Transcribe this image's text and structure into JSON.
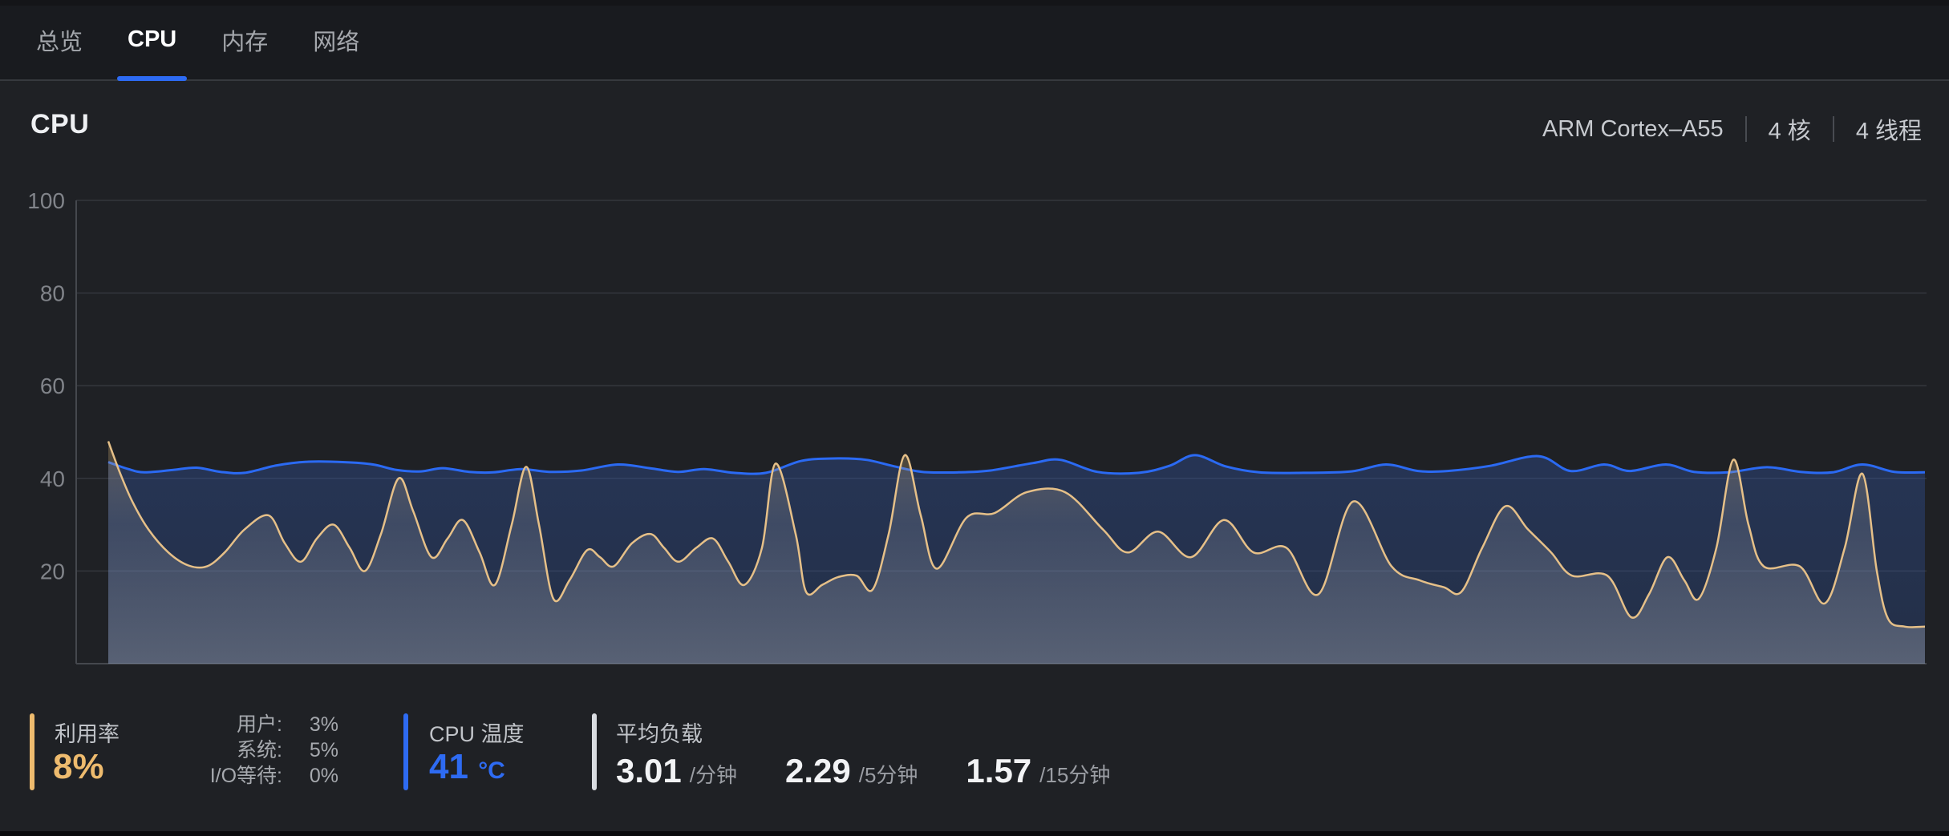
{
  "tab_bar": {
    "tabs": [
      {
        "label": "总览",
        "active": false
      },
      {
        "label": "CPU",
        "active": true
      },
      {
        "label": "内存",
        "active": false
      },
      {
        "label": "网络",
        "active": false
      }
    ]
  },
  "header": {
    "title": "CPU",
    "specs": [
      "ARM Cortex–A55",
      "4 核",
      "4 线程"
    ]
  },
  "chart_data": {
    "type": "line",
    "title": "",
    "xlabel": "",
    "ylabel": "",
    "ylim": [
      0,
      100
    ],
    "yticks": [
      100,
      80,
      60,
      40,
      20
    ],
    "grid": true,
    "legend_position": "none",
    "x_mode": "pixel",
    "series": [
      {
        "name": "blue-line",
        "color": "#2b6af3",
        "fill_top": "rgba(50,88,170,0.36)",
        "fill_bottom": "rgba(50,88,170,0.26)",
        "points": [
          [
            135,
            43.5
          ],
          [
            160,
            42
          ],
          [
            180,
            41.3
          ],
          [
            215,
            41.8
          ],
          [
            245,
            42.3
          ],
          [
            275,
            41.4
          ],
          [
            305,
            41.2
          ],
          [
            345,
            42.8
          ],
          [
            385,
            43.6
          ],
          [
            430,
            43.5
          ],
          [
            465,
            43
          ],
          [
            495,
            41.8
          ],
          [
            525,
            41.5
          ],
          [
            552,
            42.2
          ],
          [
            585,
            41.4
          ],
          [
            615,
            41.3
          ],
          [
            650,
            42
          ],
          [
            685,
            41.4
          ],
          [
            725,
            41.7
          ],
          [
            770,
            43
          ],
          [
            810,
            42.2
          ],
          [
            845,
            41.4
          ],
          [
            878,
            42
          ],
          [
            915,
            41.2
          ],
          [
            955,
            41.2
          ],
          [
            1000,
            43.8
          ],
          [
            1045,
            44.3
          ],
          [
            1080,
            44
          ],
          [
            1115,
            42.6
          ],
          [
            1150,
            41.4
          ],
          [
            1195,
            41.3
          ],
          [
            1235,
            41.7
          ],
          [
            1288,
            43.3
          ],
          [
            1322,
            44
          ],
          [
            1368,
            41.4
          ],
          [
            1420,
            41.2
          ],
          [
            1458,
            42.7
          ],
          [
            1490,
            45
          ],
          [
            1528,
            42.6
          ],
          [
            1570,
            41.3
          ],
          [
            1625,
            41.2
          ],
          [
            1685,
            41.5
          ],
          [
            1728,
            43
          ],
          [
            1768,
            41.6
          ],
          [
            1805,
            41.6
          ],
          [
            1858,
            42.7
          ],
          [
            1918,
            44.8
          ],
          [
            1958,
            41.6
          ],
          [
            2000,
            43
          ],
          [
            2032,
            41.6
          ],
          [
            2077,
            43
          ],
          [
            2112,
            41.4
          ],
          [
            2155,
            41.3
          ],
          [
            2203,
            42.4
          ],
          [
            2245,
            41.4
          ],
          [
            2285,
            41.3
          ],
          [
            2322,
            43
          ],
          [
            2362,
            41.4
          ],
          [
            2400,
            41.3
          ]
        ]
      },
      {
        "name": "orange-line",
        "color": "#e6c088",
        "fill_stops": [
          {
            "offset": 0,
            "color": "rgba(200,165,105,0.30)"
          },
          {
            "offset": 0.35,
            "color": "rgba(195,197,203,0.16)"
          },
          {
            "offset": 1,
            "color": "rgba(228,231,237,0.27)"
          }
        ],
        "points": [
          [
            135,
            48
          ],
          [
            150,
            41
          ],
          [
            165,
            35
          ],
          [
            185,
            29
          ],
          [
            210,
            24
          ],
          [
            235,
            21.2
          ],
          [
            258,
            21
          ],
          [
            280,
            24
          ],
          [
            305,
            29
          ],
          [
            335,
            32
          ],
          [
            355,
            26
          ],
          [
            375,
            22
          ],
          [
            395,
            27
          ],
          [
            416,
            30
          ],
          [
            436,
            25
          ],
          [
            455,
            20
          ],
          [
            475,
            28
          ],
          [
            497,
            40
          ],
          [
            515,
            33
          ],
          [
            538,
            23
          ],
          [
            558,
            27
          ],
          [
            577,
            31
          ],
          [
            598,
            24
          ],
          [
            617,
            17
          ],
          [
            638,
            30
          ],
          [
            656,
            42.5
          ],
          [
            672,
            30
          ],
          [
            690,
            14
          ],
          [
            710,
            18
          ],
          [
            732,
            24.5
          ],
          [
            748,
            23
          ],
          [
            765,
            21
          ],
          [
            788,
            26
          ],
          [
            811,
            28
          ],
          [
            828,
            25
          ],
          [
            846,
            22
          ],
          [
            868,
            25
          ],
          [
            889,
            27
          ],
          [
            908,
            22
          ],
          [
            928,
            17
          ],
          [
            950,
            25
          ],
          [
            967,
            43.2
          ],
          [
            992,
            28
          ],
          [
            1005,
            15.5
          ],
          [
            1025,
            17
          ],
          [
            1045,
            18.7
          ],
          [
            1068,
            19
          ],
          [
            1088,
            16
          ],
          [
            1108,
            28
          ],
          [
            1128,
            45
          ],
          [
            1148,
            32
          ],
          [
            1168,
            20.5
          ],
          [
            1205,
            31.5
          ],
          [
            1240,
            32.5
          ],
          [
            1280,
            37
          ],
          [
            1328,
            37
          ],
          [
            1375,
            29
          ],
          [
            1406,
            24
          ],
          [
            1444,
            28.5
          ],
          [
            1485,
            23
          ],
          [
            1526,
            31
          ],
          [
            1563,
            24
          ],
          [
            1604,
            25
          ],
          [
            1644,
            15
          ],
          [
            1687,
            35
          ],
          [
            1735,
            21
          ],
          [
            1770,
            18
          ],
          [
            1800,
            16.5
          ],
          [
            1822,
            15.5
          ],
          [
            1848,
            25
          ],
          [
            1877,
            34
          ],
          [
            1905,
            29
          ],
          [
            1934,
            24
          ],
          [
            1960,
            19
          ],
          [
            2004,
            19
          ],
          [
            2034,
            10
          ],
          [
            2056,
            15
          ],
          [
            2079,
            23
          ],
          [
            2100,
            18
          ],
          [
            2118,
            14
          ],
          [
            2140,
            25
          ],
          [
            2161,
            44
          ],
          [
            2180,
            30
          ],
          [
            2199,
            21
          ],
          [
            2244,
            21
          ],
          [
            2275,
            13
          ],
          [
            2300,
            25
          ],
          [
            2322,
            41
          ],
          [
            2340,
            20
          ],
          [
            2354,
            9.7
          ],
          [
            2375,
            8
          ],
          [
            2400,
            8
          ]
        ]
      }
    ]
  },
  "stats": {
    "utilization": {
      "label": "利用率",
      "value": "8%",
      "accent": "#eebb6e",
      "breakdown": [
        {
          "label": "用户:",
          "value": "3%"
        },
        {
          "label": "系统:",
          "value": "5%"
        },
        {
          "label": "I/O等待:",
          "value": "0%"
        }
      ]
    },
    "temperature": {
      "label": "CPU 温度",
      "value": "41",
      "unit": "°C",
      "accent": "#2e6bf2"
    },
    "load": {
      "label": "平均负载",
      "accent": "#d9dce1",
      "items": [
        {
          "value": "3.01",
          "unit": "/分钟"
        },
        {
          "value": "2.29",
          "unit": "/5分钟"
        },
        {
          "value": "1.57",
          "unit": "/15分钟"
        }
      ]
    }
  }
}
